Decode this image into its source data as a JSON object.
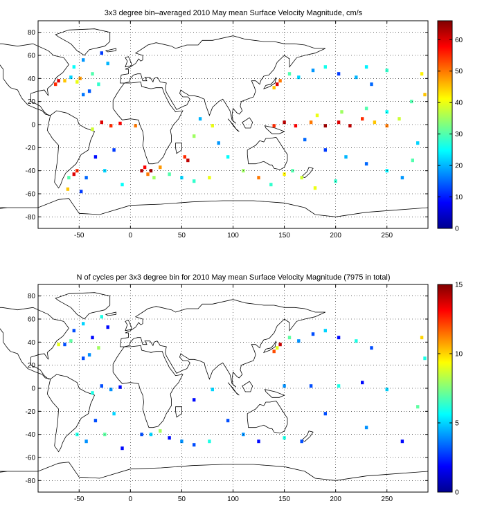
{
  "chart_data": [
    {
      "type": "heatmap",
      "title": "3x3 degree bin–averaged 2010 May mean Surface Velocity Magnitude, cm/s",
      "xlim": [
        -90,
        290
      ],
      "ylim": [
        -90,
        90
      ],
      "x_ticks": [
        -50,
        0,
        50,
        100,
        150,
        200,
        250
      ],
      "y_ticks": [
        80,
        60,
        40,
        20,
        0,
        -20,
        -40,
        -60,
        -80
      ],
      "grid": true,
      "colorbar": {
        "min": 0,
        "max": 66,
        "ticks": [
          0,
          10,
          20,
          30,
          40,
          50,
          60
        ],
        "colormap": "jet"
      },
      "bin_size_deg": 3,
      "bins": [
        [
          -55,
          50,
          25
        ],
        [
          -46,
          56,
          18
        ],
        [
          -37,
          44,
          30
        ],
        [
          -58,
          41,
          22
        ],
        [
          -40,
          29,
          14
        ],
        [
          -64,
          38,
          45
        ],
        [
          -28,
          62,
          12
        ],
        [
          -22,
          53,
          20
        ],
        [
          -31,
          35,
          28
        ],
        [
          -46,
          26,
          16
        ],
        [
          -70,
          38,
          60
        ],
        [
          -73,
          35,
          55
        ],
        [
          -52,
          37,
          40
        ],
        [
          -49,
          40,
          48
        ],
        [
          -19,
          -1,
          55
        ],
        [
          -28,
          2,
          60
        ],
        [
          -37,
          -4,
          38
        ],
        [
          -10,
          1,
          58
        ],
        [
          5,
          -1,
          50
        ],
        [
          -16,
          -22,
          12
        ],
        [
          -34,
          -28,
          9
        ],
        [
          -25,
          -40,
          22
        ],
        [
          -43,
          -46,
          15
        ],
        [
          -8,
          -52,
          25
        ],
        [
          -52,
          -40,
          55
        ],
        [
          -55,
          -43,
          60
        ],
        [
          -60,
          -46,
          30
        ],
        [
          -61,
          -56,
          45
        ],
        [
          -48,
          -58,
          12
        ],
        [
          11,
          -40,
          62
        ],
        [
          14,
          -37,
          58
        ],
        [
          20,
          -40,
          64
        ],
        [
          17,
          -43,
          50
        ],
        [
          29,
          -37,
          48
        ],
        [
          23,
          -46,
          35
        ],
        [
          38,
          -43,
          30
        ],
        [
          50,
          -46,
          22
        ],
        [
          62,
          -49,
          28
        ],
        [
          77,
          -46,
          40
        ],
        [
          62,
          -10,
          35
        ],
        [
          68,
          5,
          20
        ],
        [
          80,
          -1,
          40
        ],
        [
          86,
          -16,
          18
        ],
        [
          95,
          -28,
          25
        ],
        [
          56,
          -31,
          62
        ],
        [
          53,
          -28,
          55
        ],
        [
          110,
          -40,
          35
        ],
        [
          125,
          -46,
          50
        ],
        [
          137,
          -52,
          28
        ],
        [
          150,
          -43,
          42
        ],
        [
          158,
          -40,
          30
        ],
        [
          167,
          -46,
          38
        ],
        [
          140,
          32,
          45
        ],
        [
          143,
          35,
          60
        ],
        [
          146,
          38,
          50
        ],
        [
          155,
          44,
          30
        ],
        [
          164,
          41,
          22
        ],
        [
          178,
          47,
          18
        ],
        [
          190,
          50,
          26
        ],
        [
          203,
          44,
          12
        ],
        [
          220,
          41,
          20
        ],
        [
          235,
          35,
          15
        ],
        [
          230,
          50,
          24
        ],
        [
          250,
          47,
          28
        ],
        [
          140,
          -1,
          55
        ],
        [
          150,
          2,
          62
        ],
        [
          161,
          -1,
          58
        ],
        [
          176,
          2,
          50
        ],
        [
          190,
          -1,
          64
        ],
        [
          203,
          2,
          60
        ],
        [
          214,
          -1,
          62
        ],
        [
          226,
          5,
          55
        ],
        [
          238,
          2,
          45
        ],
        [
          250,
          -1,
          50
        ],
        [
          262,
          5,
          38
        ],
        [
          182,
          8,
          40
        ],
        [
          206,
          11,
          35
        ],
        [
          230,
          14,
          30
        ],
        [
          250,
          11,
          25
        ],
        [
          170,
          -13,
          15
        ],
        [
          190,
          -22,
          12
        ],
        [
          210,
          -28,
          20
        ],
        [
          230,
          -34,
          15
        ],
        [
          250,
          -40,
          24
        ],
        [
          265,
          -46,
          18
        ],
        [
          275,
          -31,
          30
        ],
        [
          280,
          -16,
          22
        ],
        [
          200,
          -49,
          28
        ],
        [
          180,
          -55,
          40
        ],
        [
          284,
          44,
          42
        ],
        [
          287,
          26,
          45
        ],
        [
          274,
          20,
          30
        ]
      ]
    },
    {
      "type": "heatmap",
      "title": "N of cycles per 3x3 degree bin for 2010 May mean Surface Velocity Magnitude (7975 in total)",
      "xlim": [
        -90,
        290
      ],
      "ylim": [
        -90,
        90
      ],
      "x_ticks": [
        -50,
        0,
        50,
        100,
        150,
        200,
        250
      ],
      "y_ticks": [
        80,
        60,
        40,
        20,
        0,
        -20,
        -40,
        -60,
        -80
      ],
      "grid": true,
      "colorbar": {
        "min": 0,
        "max": 15,
        "ticks": [
          0,
          5,
          10,
          15
        ],
        "colormap": "jet"
      },
      "bin_size_deg": 3,
      "bins": [
        [
          -55,
          50,
          3
        ],
        [
          -46,
          56,
          5
        ],
        [
          -37,
          44,
          2
        ],
        [
          -58,
          41,
          7
        ],
        [
          -40,
          29,
          4
        ],
        [
          -64,
          38,
          3
        ],
        [
          -28,
          62,
          6
        ],
        [
          -22,
          53,
          2
        ],
        [
          -31,
          35,
          8
        ],
        [
          -46,
          26,
          3
        ],
        [
          -70,
          38,
          9
        ],
        [
          -19,
          -1,
          4
        ],
        [
          -28,
          2,
          3
        ],
        [
          -37,
          -4,
          6
        ],
        [
          -10,
          1,
          2
        ],
        [
          -16,
          -22,
          5
        ],
        [
          -34,
          -28,
          3
        ],
        [
          -25,
          -40,
          7
        ],
        [
          -43,
          -46,
          4
        ],
        [
          -8,
          -52,
          2
        ],
        [
          -52,
          -40,
          6
        ],
        [
          11,
          -40,
          3
        ],
        [
          20,
          -40,
          5
        ],
        [
          29,
          -37,
          8
        ],
        [
          38,
          -43,
          2
        ],
        [
          50,
          -46,
          4
        ],
        [
          62,
          -49,
          3
        ],
        [
          77,
          -46,
          6
        ],
        [
          62,
          -10,
          2
        ],
        [
          80,
          -1,
          5
        ],
        [
          95,
          -28,
          3
        ],
        [
          110,
          -40,
          4
        ],
        [
          125,
          -46,
          2
        ],
        [
          150,
          -43,
          6
        ],
        [
          167,
          -46,
          3
        ],
        [
          140,
          32,
          12
        ],
        [
          143,
          35,
          9
        ],
        [
          146,
          38,
          14
        ],
        [
          155,
          44,
          7
        ],
        [
          164,
          41,
          4
        ],
        [
          178,
          47,
          3
        ],
        [
          190,
          50,
          5
        ],
        [
          203,
          44,
          2
        ],
        [
          220,
          41,
          6
        ],
        [
          235,
          35,
          3
        ],
        [
          150,
          2,
          4
        ],
        [
          176,
          2,
          3
        ],
        [
          203,
          2,
          6
        ],
        [
          226,
          5,
          2
        ],
        [
          250,
          -1,
          5
        ],
        [
          190,
          -22,
          3
        ],
        [
          230,
          -34,
          4
        ],
        [
          265,
          -46,
          2
        ],
        [
          280,
          -16,
          7
        ],
        [
          284,
          44,
          10
        ],
        [
          287,
          26,
          6
        ]
      ]
    }
  ]
}
